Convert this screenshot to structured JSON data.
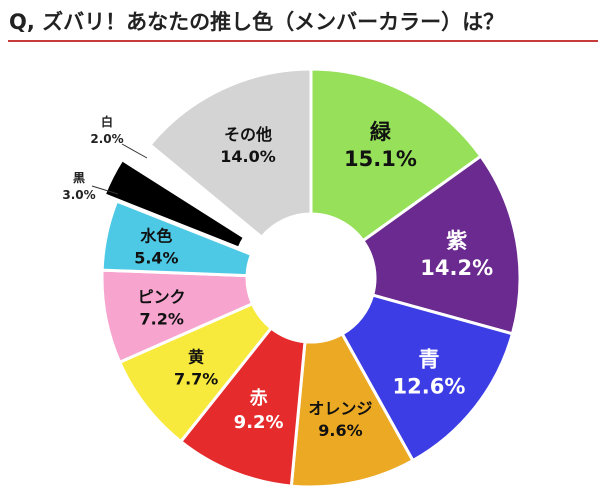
{
  "header": {
    "title": "Q, ズバリ！あなたの推し色（メンバーカラー）は？",
    "accent_color": "#c83b3b"
  },
  "chart_data": {
    "type": "pie",
    "donut": true,
    "title": "Q, ズバリ！あなたの推し色（メンバーカラー）は？",
    "unit": "%",
    "slices": [
      {
        "label": "緑",
        "value": 15.1,
        "display": "15.1%",
        "color": "#96e05a",
        "text_color": "#111111"
      },
      {
        "label": "紫",
        "value": 14.2,
        "display": "14.2%",
        "color": "#6a2a8f",
        "text_color": "#ffffff"
      },
      {
        "label": "青",
        "value": 12.6,
        "display": "12.6%",
        "color": "#3d3de6",
        "text_color": "#ffffff"
      },
      {
        "label": "オレンジ",
        "value": 9.6,
        "display": "9.6%",
        "color": "#eba924",
        "text_color": "#111111"
      },
      {
        "label": "赤",
        "value": 9.2,
        "display": "9.2%",
        "color": "#e52b2b",
        "text_color": "#ffffff"
      },
      {
        "label": "黄",
        "value": 7.7,
        "display": "7.7%",
        "color": "#f7ea3c",
        "text_color": "#111111"
      },
      {
        "label": "ピンク",
        "value": 7.2,
        "display": "7.2%",
        "color": "#f7a4cf",
        "text_color": "#111111"
      },
      {
        "label": "水色",
        "value": 5.4,
        "display": "5.4%",
        "color": "#4dc9e6",
        "text_color": "#111111"
      },
      {
        "label": "黒",
        "value": 3.0,
        "display": "3.0%",
        "color": "#000000",
        "text_color": "#111111"
      },
      {
        "label": "白",
        "value": 2.0,
        "display": "2.0%",
        "color": "#ffffff",
        "text_color": "#111111"
      },
      {
        "label": "その他",
        "value": 14.0,
        "display": "14.0%",
        "color": "#d4d4d4",
        "text_color": "#111111"
      }
    ]
  }
}
